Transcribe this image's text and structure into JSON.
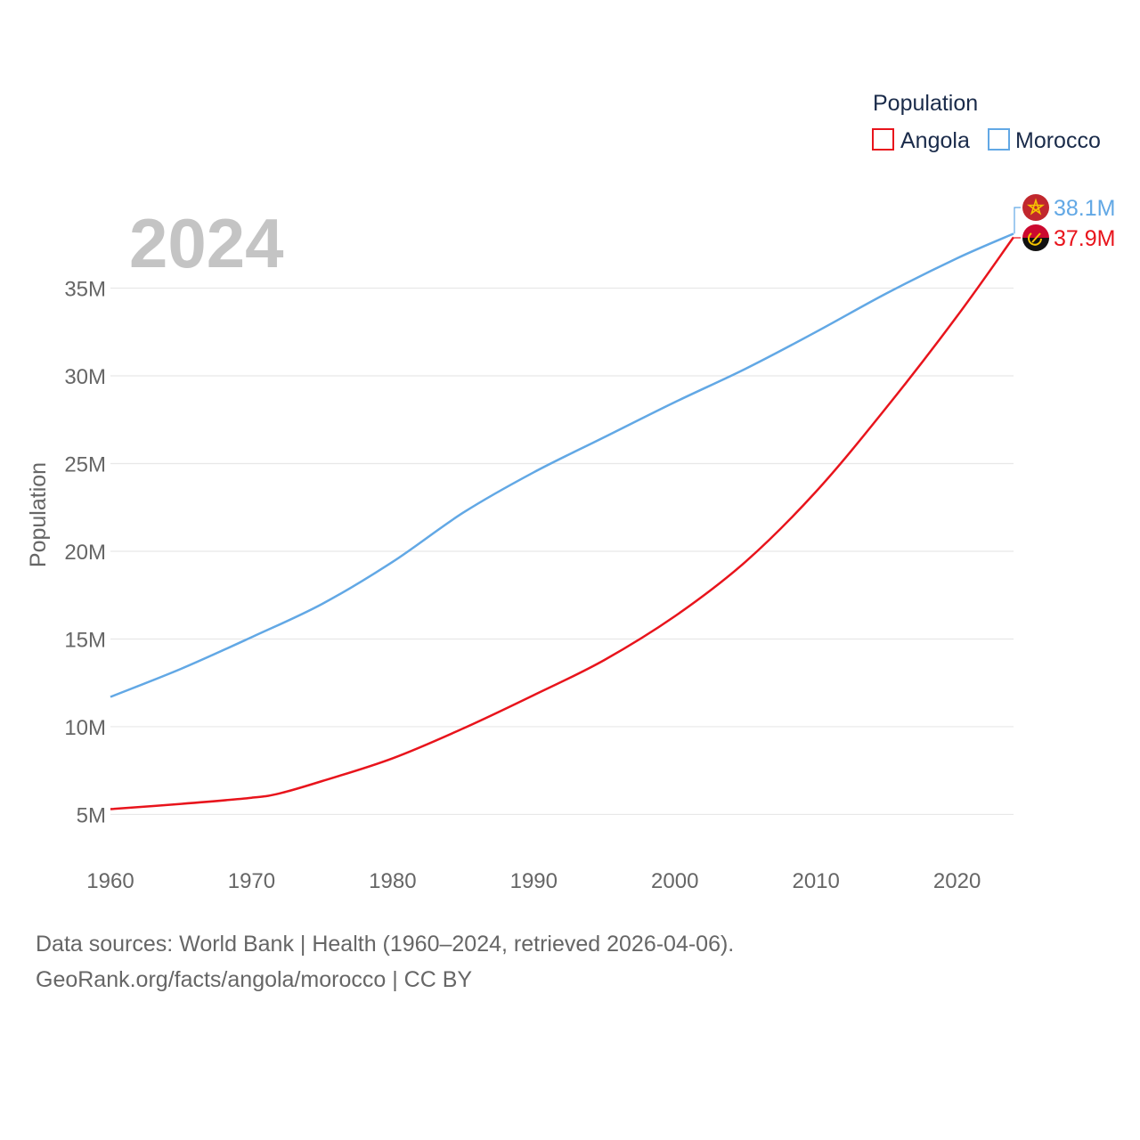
{
  "chart_data": {
    "type": "line",
    "year_label": "2024",
    "ylabel": "Population",
    "ylim": [
      3500000,
      40000000
    ],
    "xlim": [
      1960,
      2024
    ],
    "y_ticks": [
      5000000,
      10000000,
      15000000,
      20000000,
      25000000,
      30000000,
      35000000
    ],
    "y_tick_labels": [
      "5M",
      "10M",
      "15M",
      "20M",
      "25M",
      "30M",
      "35M"
    ],
    "x_ticks": [
      1960,
      1970,
      1980,
      1990,
      2000,
      2010,
      2020
    ],
    "x_tick_labels": [
      "1960",
      "1970",
      "1980",
      "1990",
      "2000",
      "2010",
      "2020"
    ],
    "legend": {
      "title": "Population",
      "position": "top-right"
    },
    "series": [
      {
        "name": "Angola",
        "color": "#e8141c",
        "end_label": "37.9M",
        "flag_icon": "angola-flag-icon",
        "x": [
          1960,
          1965,
          1970,
          1972,
          1975,
          1980,
          1985,
          1990,
          1995,
          2000,
          2005,
          2010,
          2015,
          2020,
          2024
        ],
        "values": [
          5300000,
          5600000,
          5950000,
          6200000,
          6900000,
          8200000,
          9900000,
          11800000,
          13800000,
          16300000,
          19400000,
          23400000,
          28200000,
          33400000,
          37900000
        ]
      },
      {
        "name": "Morocco",
        "color": "#62a8e5",
        "end_label": "38.1M",
        "flag_icon": "morocco-flag-icon",
        "x": [
          1960,
          1965,
          1970,
          1975,
          1980,
          1985,
          1990,
          1995,
          2000,
          2005,
          2010,
          2015,
          2020,
          2024
        ],
        "values": [
          11700000,
          13300000,
          15100000,
          17000000,
          19400000,
          22200000,
          24500000,
          26500000,
          28500000,
          30400000,
          32500000,
          34700000,
          36700000,
          38100000
        ]
      }
    ]
  },
  "footer": {
    "source_line": "Data sources: World Bank | Health (1960–2024, retrieved 2026-04-06).",
    "credit_line": "GeoRank.org/facts/angola/morocco | CC BY"
  }
}
